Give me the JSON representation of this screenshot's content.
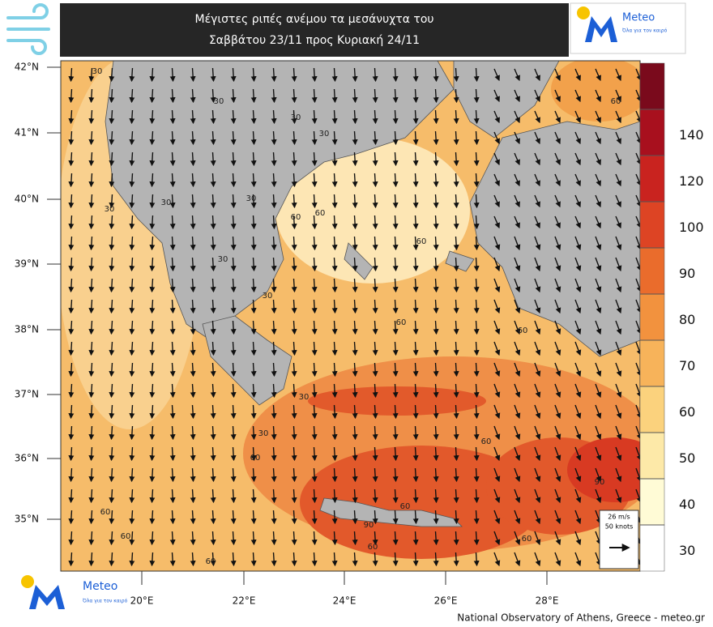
{
  "header": {
    "title_lines": [
      "Μέγιστες ριπές ανέμου τα μεσάνυχτα του",
      "Σαββάτου 23/11 προς Κυριακή 24/11"
    ],
    "logo": {
      "name": "Meteo",
      "tagline": "Όλα για τον καιρό"
    }
  },
  "map": {
    "lat_labels": [
      "42°N",
      "41°N",
      "40°N",
      "39°N",
      "38°N",
      "37°N",
      "36°N",
      "35°N"
    ],
    "lon_labels": [
      "20°E",
      "22°E",
      "24°E",
      "26°E",
      "28°E"
    ],
    "contour_labels": [
      "30",
      "30",
      "30",
      "30",
      "30",
      "30",
      "30",
      "30",
      "60",
      "60",
      "60",
      "30",
      "60",
      "60",
      "30",
      "30",
      "60",
      "60",
      "60",
      "60",
      "90",
      "60",
      "60",
      "90",
      "60",
      "60",
      "60"
    ],
    "reference_vector": [
      "26 m/s",
      "50 knots"
    ]
  },
  "colorbar": {
    "ticks": [
      30,
      40,
      50,
      60,
      70,
      80,
      90,
      100,
      120,
      140
    ],
    "colors": [
      "#ffffff",
      "#fffbd6",
      "#fde9a8",
      "#fbd27d",
      "#f7b35a",
      "#f2923e",
      "#ea6c2c",
      "#dd4424",
      "#c9231f",
      "#a8101e",
      "#7a0a1c"
    ]
  },
  "footer": {
    "credit": "National Observatory of Athens, Greece - meteo.gr",
    "logo": {
      "name": "Meteo",
      "tagline": "Όλα για τον καιρό"
    }
  }
}
